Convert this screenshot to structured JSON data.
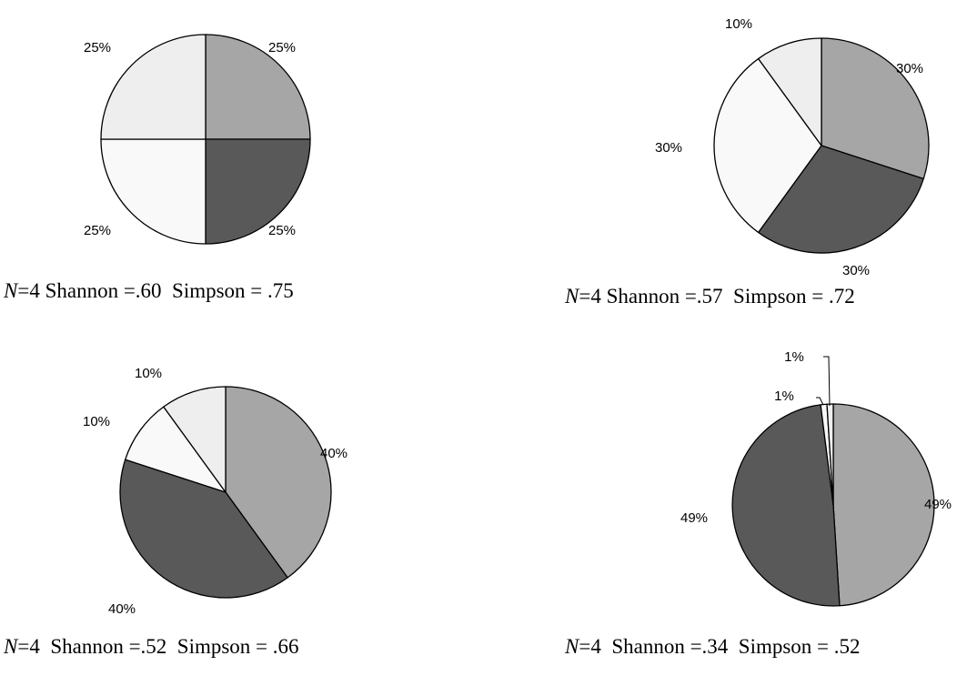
{
  "chart_data": [
    {
      "type": "pie",
      "slices": [
        {
          "value": 25,
          "label": "25%",
          "color": "#a6a6a6"
        },
        {
          "value": 25,
          "label": "25%",
          "color": "#595959"
        },
        {
          "value": 25,
          "label": "25%",
          "color": "#f9f9f9"
        },
        {
          "value": 25,
          "label": "25%",
          "color": "#eeeeee"
        }
      ],
      "caption": {
        "n_symbol": "N",
        "n_text": "=4 Shannon =.60  Simpson = .75"
      }
    },
    {
      "type": "pie",
      "slices": [
        {
          "value": 30,
          "label": "30%",
          "color": "#a6a6a6"
        },
        {
          "value": 30,
          "label": "30%",
          "color": "#595959"
        },
        {
          "value": 30,
          "label": "30%",
          "color": "#f9f9f9"
        },
        {
          "value": 10,
          "label": "10%",
          "color": "#eeeeee"
        }
      ],
      "caption": {
        "n_symbol": "N",
        "n_text": "=4 Shannon =.57  Simpson = .72"
      }
    },
    {
      "type": "pie",
      "slices": [
        {
          "value": 40,
          "label": "40%",
          "color": "#a6a6a6"
        },
        {
          "value": 40,
          "label": "40%",
          "color": "#595959"
        },
        {
          "value": 10,
          "label": "10%",
          "color": "#f9f9f9"
        },
        {
          "value": 10,
          "label": "10%",
          "color": "#eeeeee"
        }
      ],
      "caption": {
        "n_symbol": "N",
        "n_text": "=4  Shannon =.52  Simpson = .66"
      }
    },
    {
      "type": "pie",
      "slices": [
        {
          "value": 49,
          "label": "49%",
          "color": "#a6a6a6"
        },
        {
          "value": 49,
          "label": "49%",
          "color": "#595959"
        },
        {
          "value": 1,
          "label": "1%",
          "color": "#f9f9f9"
        },
        {
          "value": 1,
          "label": "1%",
          "color": "#eeeeee"
        }
      ],
      "caption": {
        "n_symbol": "N",
        "n_text": "=4  Shannon =.34  Simpson = .52"
      }
    }
  ]
}
